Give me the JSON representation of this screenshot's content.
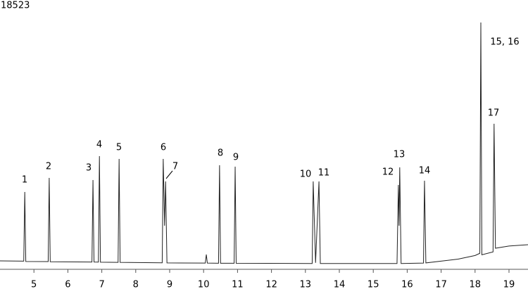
{
  "chart_data": {
    "type": "line",
    "xlim": [
      4,
      19.56
    ],
    "ylim": [
      0,
      18523
    ],
    "xticks": [
      5,
      6,
      7,
      8,
      9,
      10,
      11,
      12,
      13,
      14,
      15,
      16,
      17,
      18,
      19
    ],
    "yticks": [
      18523
    ],
    "color": "#222222",
    "x": [
      4.0,
      4.7,
      4.73,
      4.76,
      5.42,
      5.45,
      5.48,
      6.71,
      6.74,
      6.77,
      6.9,
      6.93,
      6.96,
      7.48,
      7.51,
      7.54,
      8.78,
      8.81,
      8.85,
      8.88,
      8.92,
      10.05,
      10.08,
      10.11,
      10.44,
      10.47,
      10.5,
      10.9,
      10.93,
      10.96,
      13.2,
      13.23,
      13.3,
      13.4,
      13.44,
      15.7,
      15.74,
      15.76,
      15.78,
      15.82,
      16.48,
      16.51,
      16.55,
      17.5,
      18.0,
      18.14,
      18.17,
      18.2,
      18.53,
      18.56,
      18.6,
      19.0,
      19.56
    ],
    "y": [
      580,
      560,
      5320,
      540,
      530,
      6287,
      520,
      500,
      6142,
      500,
      495,
      7786,
      490,
      480,
      7593,
      475,
      450,
      7593,
      3000,
      6045,
      440,
      430,
      1016,
      430,
      420,
      7157,
      420,
      420,
      7061,
      415,
      400,
      6045,
      450,
      6045,
      400,
      400,
      5803,
      3000,
      7012,
      400,
      430,
      6093,
      440,
      700,
      950,
      1100,
      16974,
      1000,
      1200,
      10011,
      1450,
      1600,
      1693
    ],
    "annotations": [
      "1",
      "2",
      "3",
      "4",
      "5",
      "6",
      "7",
      "8",
      "9",
      "10",
      "11",
      "12",
      "13",
      "14",
      "15, 16",
      "17"
    ]
  }
}
